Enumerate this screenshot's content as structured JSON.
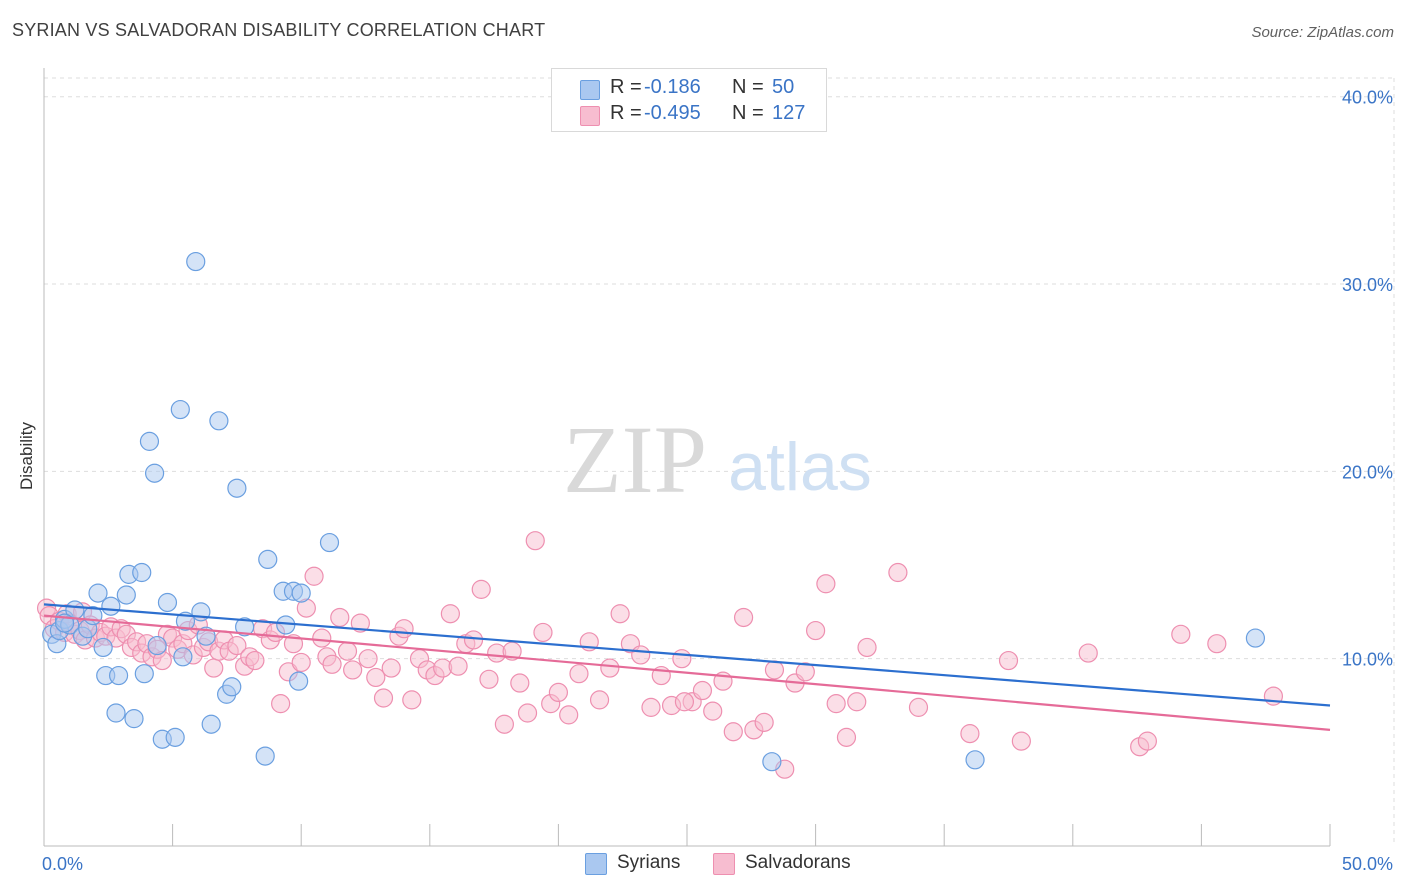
{
  "title": "SYRIAN VS SALVADORAN DISABILITY CORRELATION CHART",
  "source": "Source: ZipAtlas.com",
  "watermark": {
    "zip": "ZIP",
    "atlas": "atlas"
  },
  "colors": {
    "syrians_fill": "#aac8f0",
    "syrians_stroke": "#6a9fe0",
    "syrians_line": "#2c6fcf",
    "salvadorans_fill": "#f7bdd0",
    "salvadorans_stroke": "#ee8fb0",
    "salvadorans_line": "#e56b98",
    "tick_label": "#3a74c6",
    "grid": "#dddddd"
  },
  "legend_top": {
    "rows": [
      {
        "r_label": "R =",
        "r_value": "-0.186",
        "n_label": "N =",
        "n_value": "50"
      },
      {
        "r_label": "R =",
        "r_value": "-0.495",
        "n_label": "N =",
        "n_value": "127"
      }
    ]
  },
  "legend_bottom": {
    "syrians": "Syrians",
    "salvadorans": "Salvadorans"
  },
  "chart_data": {
    "type": "scatter",
    "title": "SYRIAN VS SALVADORAN DISABILITY CORRELATION CHART",
    "xlabel": "",
    "ylabel": "Disability",
    "xlim": [
      0,
      50
    ],
    "ylim": [
      0,
      41
    ],
    "x_tick_labels": [
      "0.0%",
      "50.0%"
    ],
    "y_ticks": [
      10,
      20,
      30,
      40
    ],
    "y_tick_labels": [
      "10.0%",
      "20.0%",
      "30.0%",
      "40.0%"
    ],
    "grid": true,
    "legend_position": "bottom-center",
    "series": [
      {
        "name": "Syrians",
        "r": -0.186,
        "n": 50,
        "trend": {
          "x": [
            0,
            50
          ],
          "y": [
            12.9,
            7.5
          ]
        },
        "points": [
          [
            0.3,
            11.3
          ],
          [
            0.5,
            10.8
          ],
          [
            0.6,
            11.5
          ],
          [
            0.8,
            12.1
          ],
          [
            1.0,
            11.8
          ],
          [
            1.2,
            12.6
          ],
          [
            1.5,
            11.2
          ],
          [
            1.7,
            11.6
          ],
          [
            1.9,
            12.3
          ],
          [
            2.1,
            13.5
          ],
          [
            2.3,
            10.6
          ],
          [
            2.4,
            9.1
          ],
          [
            2.6,
            12.8
          ],
          [
            2.8,
            7.1
          ],
          [
            2.9,
            9.1
          ],
          [
            3.2,
            13.4
          ],
          [
            3.3,
            14.5
          ],
          [
            3.5,
            6.8
          ],
          [
            3.8,
            14.6
          ],
          [
            3.9,
            9.2
          ],
          [
            4.1,
            21.6
          ],
          [
            4.3,
            19.9
          ],
          [
            4.4,
            10.7
          ],
          [
            4.6,
            5.7
          ],
          [
            4.8,
            13.0
          ],
          [
            5.1,
            5.8
          ],
          [
            5.3,
            23.3
          ],
          [
            5.4,
            10.1
          ],
          [
            5.5,
            12.0
          ],
          [
            5.9,
            31.2
          ],
          [
            6.1,
            12.5
          ],
          [
            6.3,
            11.2
          ],
          [
            6.5,
            6.5
          ],
          [
            6.8,
            22.7
          ],
          [
            7.1,
            8.1
          ],
          [
            7.3,
            8.5
          ],
          [
            7.5,
            19.1
          ],
          [
            7.8,
            11.7
          ],
          [
            8.6,
            4.8
          ],
          [
            8.7,
            15.3
          ],
          [
            9.3,
            13.6
          ],
          [
            9.4,
            11.8
          ],
          [
            9.7,
            13.6
          ],
          [
            10.0,
            13.5
          ],
          [
            9.9,
            8.8
          ],
          [
            11.1,
            16.2
          ],
          [
            28.3,
            4.5
          ],
          [
            36.2,
            4.6
          ],
          [
            47.1,
            11.1
          ],
          [
            0.8,
            11.9
          ]
        ]
      },
      {
        "name": "Salvadorans",
        "r": -0.495,
        "n": 127,
        "trend": {
          "x": [
            0,
            50
          ],
          "y": [
            12.3,
            6.2
          ]
        },
        "points": [
          [
            0.1,
            12.7
          ],
          [
            0.2,
            12.3
          ],
          [
            0.4,
            11.6
          ],
          [
            0.6,
            12.0
          ],
          [
            0.8,
            11.4
          ],
          [
            0.9,
            12.4
          ],
          [
            1.0,
            11.9
          ],
          [
            1.2,
            11.3
          ],
          [
            1.4,
            11.5
          ],
          [
            1.5,
            12.5
          ],
          [
            1.6,
            11.0
          ],
          [
            1.8,
            11.8
          ],
          [
            2.0,
            11.1
          ],
          [
            2.2,
            11.4
          ],
          [
            2.4,
            11.2
          ],
          [
            2.6,
            11.7
          ],
          [
            2.8,
            11.1
          ],
          [
            3.0,
            11.6
          ],
          [
            3.2,
            11.3
          ],
          [
            3.4,
            10.6
          ],
          [
            3.6,
            10.9
          ],
          [
            3.8,
            10.3
          ],
          [
            4.0,
            10.8
          ],
          [
            4.2,
            10.1
          ],
          [
            4.4,
            10.5
          ],
          [
            4.6,
            9.9
          ],
          [
            4.8,
            11.3
          ],
          [
            5.0,
            11.1
          ],
          [
            5.2,
            10.5
          ],
          [
            5.4,
            10.8
          ],
          [
            5.6,
            11.5
          ],
          [
            5.8,
            10.2
          ],
          [
            6.0,
            11.8
          ],
          [
            6.2,
            10.6
          ],
          [
            6.4,
            10.9
          ],
          [
            6.6,
            9.5
          ],
          [
            6.8,
            10.4
          ],
          [
            7.0,
            11.0
          ],
          [
            7.2,
            10.4
          ],
          [
            7.5,
            10.7
          ],
          [
            7.8,
            9.6
          ],
          [
            8.0,
            10.1
          ],
          [
            8.2,
            9.9
          ],
          [
            8.5,
            11.6
          ],
          [
            8.8,
            11.0
          ],
          [
            9.0,
            11.4
          ],
          [
            9.2,
            7.6
          ],
          [
            9.5,
            9.3
          ],
          [
            9.7,
            10.8
          ],
          [
            10.0,
            9.8
          ],
          [
            10.2,
            12.7
          ],
          [
            10.5,
            14.4
          ],
          [
            10.8,
            11.1
          ],
          [
            11.0,
            10.1
          ],
          [
            11.2,
            9.7
          ],
          [
            11.5,
            12.2
          ],
          [
            11.8,
            10.4
          ],
          [
            12.0,
            9.4
          ],
          [
            12.3,
            11.9
          ],
          [
            12.6,
            10.0
          ],
          [
            12.9,
            9.0
          ],
          [
            13.2,
            7.9
          ],
          [
            13.5,
            9.5
          ],
          [
            13.8,
            11.2
          ],
          [
            14.0,
            11.6
          ],
          [
            14.3,
            7.8
          ],
          [
            14.6,
            10.0
          ],
          [
            14.9,
            9.4
          ],
          [
            15.2,
            9.1
          ],
          [
            15.5,
            9.5
          ],
          [
            15.8,
            12.4
          ],
          [
            16.1,
            9.6
          ],
          [
            16.4,
            10.8
          ],
          [
            16.7,
            11.0
          ],
          [
            17.0,
            13.7
          ],
          [
            17.3,
            8.9
          ],
          [
            17.6,
            10.3
          ],
          [
            17.9,
            6.5
          ],
          [
            18.2,
            10.4
          ],
          [
            18.5,
            8.7
          ],
          [
            18.8,
            7.1
          ],
          [
            19.1,
            16.3
          ],
          [
            19.4,
            11.4
          ],
          [
            19.7,
            7.6
          ],
          [
            20.0,
            8.2
          ],
          [
            20.4,
            7.0
          ],
          [
            20.8,
            9.2
          ],
          [
            21.2,
            10.9
          ],
          [
            21.6,
            7.8
          ],
          [
            22.0,
            9.5
          ],
          [
            22.4,
            12.4
          ],
          [
            22.8,
            10.8
          ],
          [
            23.2,
            10.2
          ],
          [
            23.6,
            7.4
          ],
          [
            24.0,
            9.1
          ],
          [
            24.4,
            7.5
          ],
          [
            24.8,
            10.0
          ],
          [
            25.2,
            7.7
          ],
          [
            25.6,
            8.3
          ],
          [
            26.0,
            7.2
          ],
          [
            26.4,
            8.8
          ],
          [
            26.8,
            6.1
          ],
          [
            27.2,
            12.2
          ],
          [
            27.6,
            6.2
          ],
          [
            28.0,
            6.6
          ],
          [
            28.4,
            9.4
          ],
          [
            28.8,
            4.1
          ],
          [
            29.2,
            8.7
          ],
          [
            29.6,
            9.3
          ],
          [
            30.0,
            11.5
          ],
          [
            30.4,
            14.0
          ],
          [
            30.8,
            7.6
          ],
          [
            31.2,
            5.8
          ],
          [
            31.6,
            7.7
          ],
          [
            32.0,
            10.6
          ],
          [
            33.2,
            14.6
          ],
          [
            34.0,
            7.4
          ],
          [
            36.0,
            6.0
          ],
          [
            37.5,
            9.9
          ],
          [
            38.0,
            5.6
          ],
          [
            40.6,
            10.3
          ],
          [
            42.6,
            5.3
          ],
          [
            44.2,
            11.3
          ],
          [
            45.6,
            10.8
          ],
          [
            47.8,
            8.0
          ],
          [
            24.9,
            7.7
          ],
          [
            42.9,
            5.6
          ]
        ]
      }
    ]
  }
}
